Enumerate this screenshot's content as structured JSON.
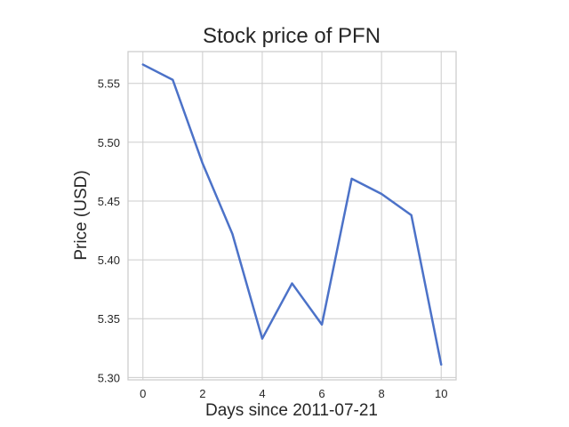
{
  "chart_data": {
    "type": "line",
    "title": "Stock price of PFN",
    "xlabel": "Days since 2011-07-21",
    "ylabel": "Price (USD)",
    "x": [
      0,
      1,
      2,
      3,
      4,
      5,
      6,
      7,
      8,
      9,
      10
    ],
    "series": [
      {
        "values": [
          5.566,
          5.553,
          5.482,
          5.422,
          5.333,
          5.38,
          5.345,
          5.469,
          5.456,
          5.438,
          5.311
        ],
        "color": "#4c72c8"
      }
    ],
    "xlim": [
      -0.5,
      10.5
    ],
    "ylim": [
      5.298,
      5.577
    ],
    "xticks": [
      0,
      2,
      4,
      6,
      8,
      10
    ],
    "xtick_labels": [
      "0",
      "2",
      "4",
      "6",
      "8",
      "10"
    ],
    "yticks": [
      5.3,
      5.35,
      5.4,
      5.45,
      5.5,
      5.55
    ],
    "ytick_labels": [
      "5.30",
      "5.35",
      "5.40",
      "5.45",
      "5.50",
      "5.55"
    ],
    "grid": true,
    "legend": false
  }
}
